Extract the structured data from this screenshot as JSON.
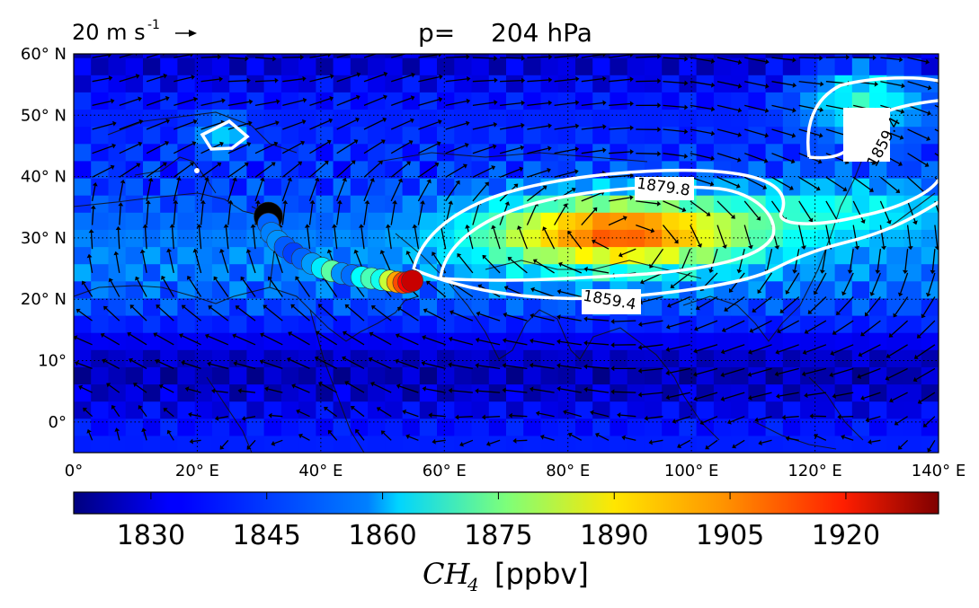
{
  "chart_data": {
    "type": "heatmap",
    "title_prefix": "p=",
    "title_value": "204 hPa",
    "wind_reference": {
      "label": "20 m s",
      "exponent": "-1",
      "arrow": "→"
    },
    "map": {
      "lon_range": [
        0,
        140
      ],
      "lat_range": [
        -5,
        60
      ]
    },
    "xticks": [
      {
        "value": 0,
        "label": "0°"
      },
      {
        "value": 20,
        "label": "20° E"
      },
      {
        "value": 40,
        "label": "40° E"
      },
      {
        "value": 60,
        "label": "60° E"
      },
      {
        "value": 80,
        "label": "80° E"
      },
      {
        "value": 100,
        "label": "100° E"
      },
      {
        "value": 120,
        "label": "120° E"
      },
      {
        "value": 140,
        "label": "140° E"
      }
    ],
    "yticks": [
      {
        "value": 0,
        "label": "0°"
      },
      {
        "value": 10,
        "label": "10°"
      },
      {
        "value": 20,
        "label": "20° N"
      },
      {
        "value": 30,
        "label": "30° N"
      },
      {
        "value": 40,
        "label": "40° N"
      },
      {
        "value": 50,
        "label": "50° N"
      },
      {
        "value": 60,
        "label": "60° N"
      }
    ],
    "colorbar": {
      "range": [
        1820,
        1932
      ],
      "ticks": [
        1830,
        1845,
        1860,
        1875,
        1890,
        1905,
        1920
      ],
      "label_math": "CH",
      "label_sub": "4",
      "label_unit": "[ppbv]",
      "colormap": "jet"
    },
    "contours": [
      {
        "level": 1859.4,
        "label": "1859.4",
        "color": "#ffffff"
      },
      {
        "level": 1879.8,
        "label": "1879.8",
        "color": "#ffffff"
      }
    ],
    "trajectory": {
      "description_none": "",
      "points": [
        {
          "lon": 31.5,
          "lat": 33.5,
          "ch4": 1820
        },
        {
          "lon": 31.5,
          "lat": 32.3,
          "ch4": 1845
        },
        {
          "lon": 32.0,
          "lat": 30.8,
          "ch4": 1848
        },
        {
          "lon": 33.0,
          "lat": 29.5,
          "ch4": 1850
        },
        {
          "lon": 34.2,
          "lat": 28.5,
          "ch4": 1844
        },
        {
          "lon": 35.6,
          "lat": 27.5,
          "ch4": 1841
        },
        {
          "lon": 37.0,
          "lat": 26.6,
          "ch4": 1845
        },
        {
          "lon": 38.6,
          "lat": 25.8,
          "ch4": 1851
        },
        {
          "lon": 40.2,
          "lat": 25.1,
          "ch4": 1860
        },
        {
          "lon": 41.8,
          "lat": 24.6,
          "ch4": 1872
        },
        {
          "lon": 43.4,
          "lat": 24.2,
          "ch4": 1850
        },
        {
          "lon": 45.0,
          "lat": 23.9,
          "ch4": 1846
        },
        {
          "lon": 46.6,
          "lat": 23.6,
          "ch4": 1862
        },
        {
          "lon": 48.2,
          "lat": 23.4,
          "ch4": 1870
        },
        {
          "lon": 49.8,
          "lat": 23.2,
          "ch4": 1864
        },
        {
          "lon": 51.2,
          "lat": 23.0,
          "ch4": 1884
        },
        {
          "lon": 52.4,
          "lat": 22.8,
          "ch4": 1900
        },
        {
          "lon": 53.4,
          "lat": 22.7,
          "ch4": 1910
        },
        {
          "lon": 54.2,
          "lat": 22.8,
          "ch4": 1918
        },
        {
          "lon": 54.8,
          "lat": 23.0,
          "ch4": 1924
        }
      ]
    }
  }
}
